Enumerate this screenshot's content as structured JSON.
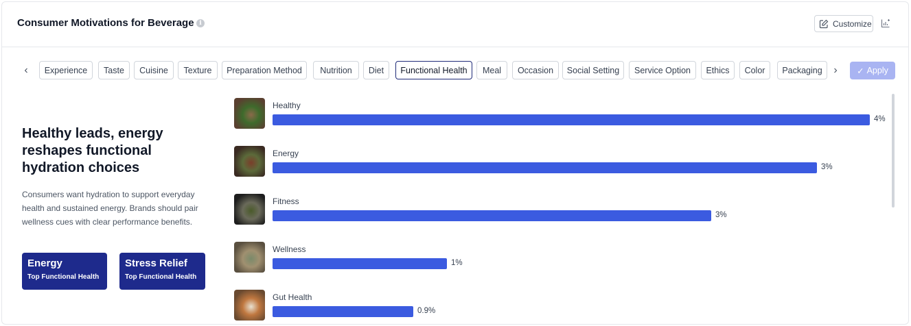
{
  "header": {
    "title": "Consumer Motivations for Beverage",
    "info_icon": "info-icon",
    "customize_label": "Customize"
  },
  "tabs": [
    "Experience",
    "Taste",
    "Cuisine",
    "Texture",
    "Preparation Method",
    "Nutrition",
    "Diet",
    "Functional Health",
    "Meal",
    "Occasion",
    "Social Setting",
    "Service Option",
    "Ethics",
    "Color",
    "Packaging"
  ],
  "active_tab": "Functional Health",
  "apply_label": "Apply",
  "insight": {
    "headline": "Healthy leads, energy reshapes functional hydration choices",
    "description": "Consumers want hydration to support everyday health and sustained energy. Brands should pair wellness cues with clear performance benefits.",
    "cards": [
      {
        "title": "Energy",
        "subtitle": "Top Functional Health"
      },
      {
        "title": "Stress Relief",
        "subtitle": "Top Functional Health"
      }
    ]
  },
  "chart_data": {
    "type": "bar",
    "categories": [
      "Healthy",
      "Energy",
      "Fitness",
      "Wellness",
      "Gut Health"
    ],
    "values": [
      4,
      3,
      3,
      1,
      0.9
    ],
    "value_labels": [
      "4%",
      "3%",
      "3%",
      "1%",
      "0.9%"
    ],
    "bar_fraction": [
      1.0,
      0.912,
      0.735,
      0.292,
      0.236
    ]
  },
  "colors": {
    "bar": "#3b5be0",
    "card": "#1e2a8c",
    "apply": "#a9b4f2"
  }
}
